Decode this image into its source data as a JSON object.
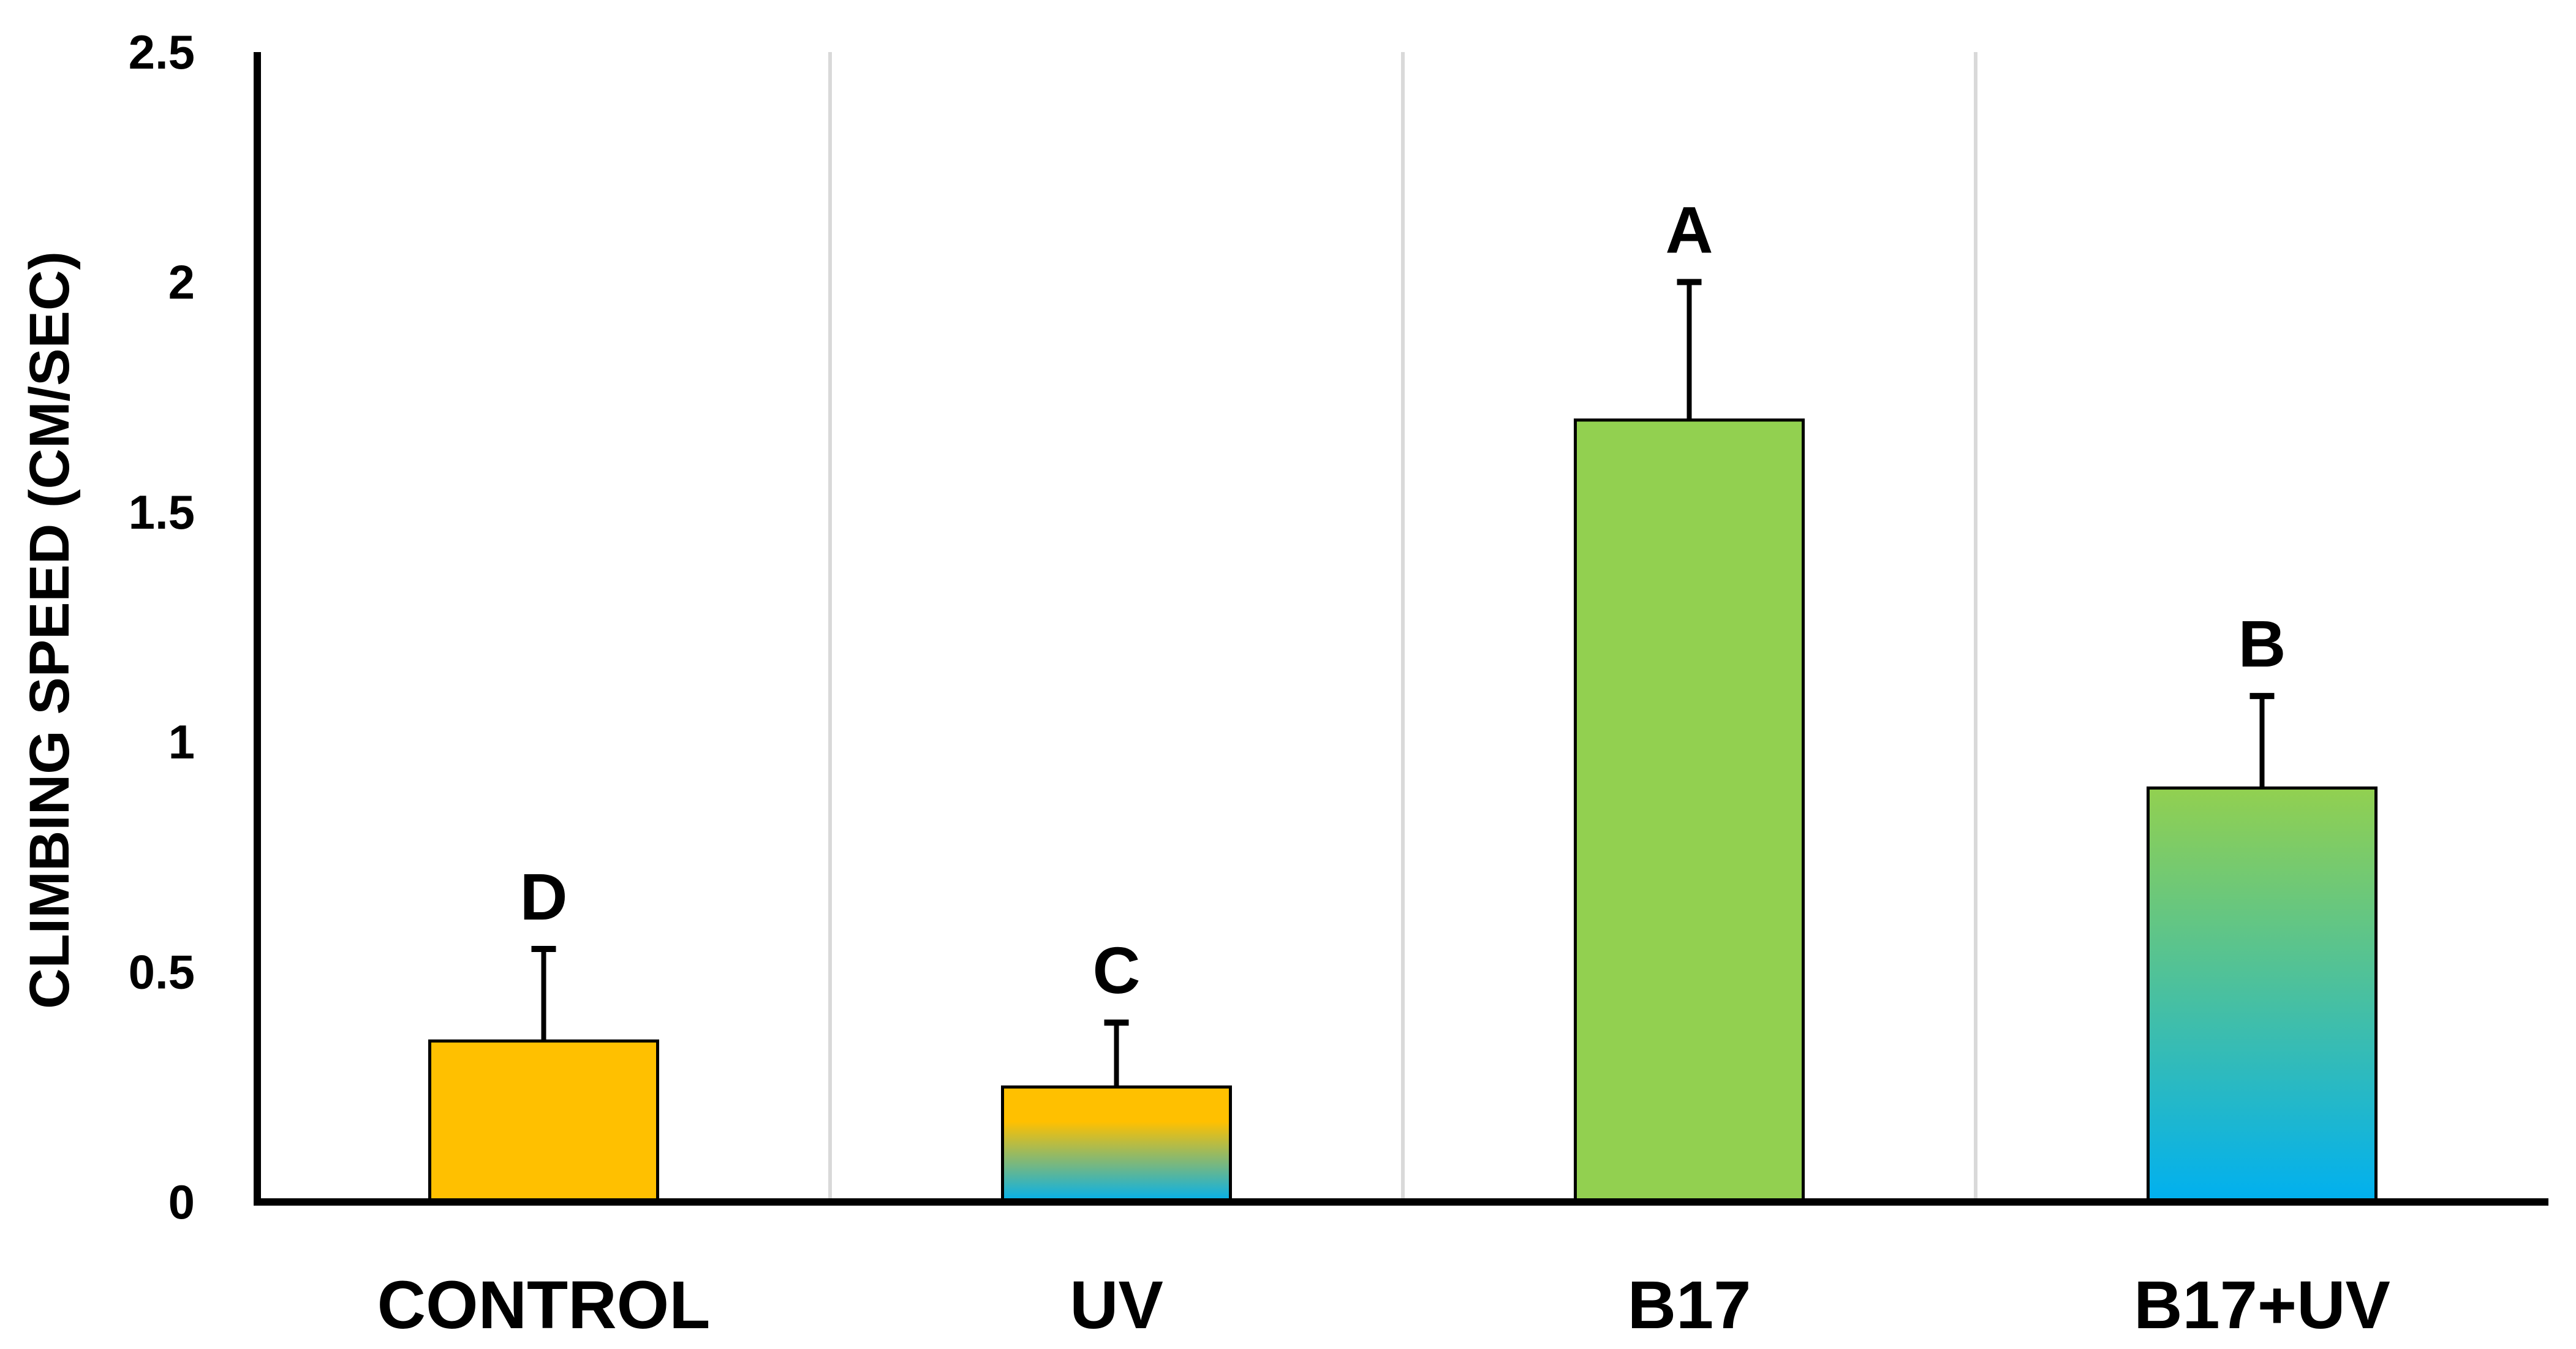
{
  "chart_data": {
    "type": "bar",
    "title": "",
    "xlabel": "",
    "ylabel": "CLIMBING SPEED (CM/SEC)",
    "ylim": [
      0,
      2.5
    ],
    "yticks": [
      0,
      0.5,
      1,
      1.5,
      2,
      2.5
    ],
    "ytick_labels": [
      "0",
      "0.5",
      "1",
      "1.5",
      "2",
      "2.5"
    ],
    "grid": "vertical separators between categories",
    "legend": "none",
    "categories": [
      "CONTROL",
      "UV",
      "B17",
      "B17+UV"
    ],
    "values": [
      0.35,
      0.25,
      1.7,
      0.9
    ],
    "error_upper": [
      0.2,
      0.14,
      0.3,
      0.2
    ],
    "significance_letters": [
      "D",
      "C",
      "A",
      "B"
    ],
    "bar_fills": [
      {
        "type": "solid",
        "color": "#FFC000"
      },
      {
        "type": "gradient",
        "stops": [
          {
            "offset": 0,
            "color": "#FFC000"
          },
          {
            "offset": 0.3,
            "color": "#FFC000"
          },
          {
            "offset": 1,
            "color": "#00B0F0"
          }
        ]
      },
      {
        "type": "solid",
        "color": "#92D050"
      },
      {
        "type": "gradient",
        "stops": [
          {
            "offset": 0,
            "color": "#92D050"
          },
          {
            "offset": 1,
            "color": "#00B0F0"
          }
        ]
      }
    ],
    "bar_edge_color": "#000000",
    "axis_color": "#000000",
    "grid_color": "#D9D9D9"
  }
}
